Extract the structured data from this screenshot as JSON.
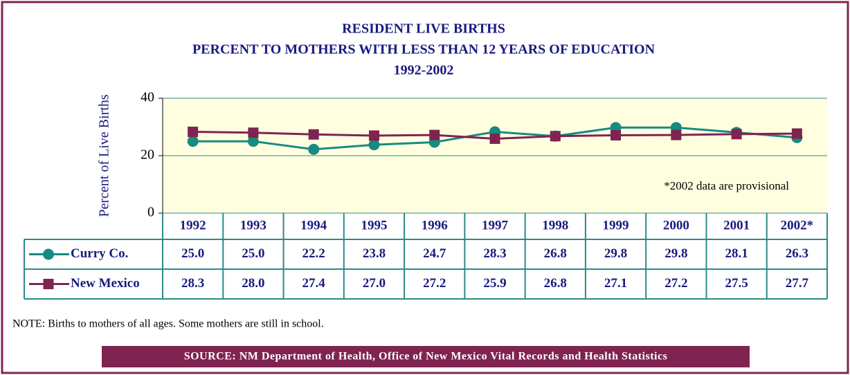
{
  "chart_data": {
    "type": "line",
    "title": [
      "RESIDENT LIVE BIRTHS",
      "PERCENT TO MOTHERS WITH LESS THAN 12 YEARS OF EDUCATION",
      "1992-2002"
    ],
    "y_label": "Percent of Live Births",
    "categories": [
      "1992",
      "1993",
      "1994",
      "1995",
      "1996",
      "1997",
      "1998",
      "1999",
      "2000",
      "2001",
      "2002*"
    ],
    "series": [
      {
        "name": "Curry Co.",
        "color": "#178a82",
        "marker": "circle",
        "values": [
          25.0,
          25.0,
          22.2,
          23.8,
          24.7,
          28.3,
          26.8,
          29.8,
          29.8,
          28.1,
          26.3
        ],
        "value_labels": [
          "25.0",
          "25.0",
          "22.2",
          "23.8",
          "24.7",
          "28.3",
          "26.8",
          "29.8",
          "29.8",
          "28.1",
          "26.3"
        ]
      },
      {
        "name": "New Mexico",
        "color": "#7f2450",
        "marker": "square",
        "values": [
          28.3,
          28.0,
          27.4,
          27.0,
          27.2,
          25.9,
          26.8,
          27.1,
          27.2,
          27.5,
          27.7
        ],
        "value_labels": [
          "28.3",
          "28.0",
          "27.4",
          "27.0",
          "27.2",
          "25.9",
          "26.8",
          "27.1",
          "27.2",
          "27.5",
          "27.7"
        ]
      }
    ],
    "ylim": [
      0,
      40
    ],
    "yticks": [
      0,
      20,
      40
    ],
    "grid": true,
    "annotation": "*2002 data are provisional",
    "note": "NOTE:  Births to mothers of all ages.  Some mothers are still in school.",
    "source": "SOURCE: NM Department of Health, Office of New Mexico Vital Records and Health Statistics"
  }
}
